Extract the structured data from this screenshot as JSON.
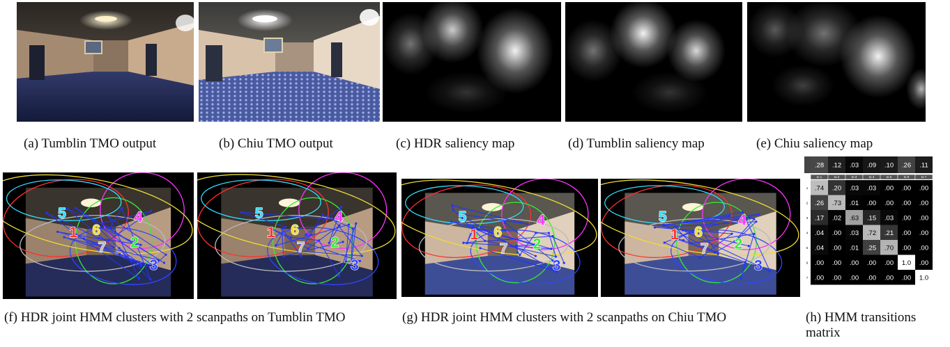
{
  "captions": {
    "a": "(a) Tumblin TMO output",
    "b": "(b) Chiu TMO output",
    "c": "(c) HDR saliency map",
    "d": "(d) Tumblin saliency map",
    "e": "(e) Chiu saliency map",
    "f": "(f) HDR joint HMM clusters with 2 scanpaths on Tumblin TMO",
    "g": "(g) HDR joint HMM clusters with 2 scanpaths on Chiu TMO",
    "h": "(h) HMM transitions matrix"
  },
  "cluster_labels": [
    "1",
    "2",
    "3",
    "4",
    "5",
    "6",
    "7"
  ],
  "cluster_colors": [
    "#ff3030",
    "#33ee33",
    "#3344ff",
    "#ff33ff",
    "#33ddff",
    "#eedd33",
    "#bbbbbb"
  ],
  "matrix": {
    "priors": [
      ".28",
      ".12",
      ".03",
      ".09",
      ".10",
      ".26",
      ".11"
    ],
    "col_headers": [
      "to 1",
      "to 2",
      "to 3",
      "to 4",
      "to 5",
      "to 6",
      "to 7"
    ],
    "row_headers": [
      "1",
      "2",
      "3",
      "4",
      "5",
      "6",
      "7"
    ],
    "values": [
      [
        ".74",
        ".20",
        ".03",
        ".03",
        ".00",
        ".00",
        ".00"
      ],
      [
        ".26",
        ".73",
        ".01",
        ".00",
        ".00",
        ".00",
        ".00"
      ],
      [
        ".17",
        ".02",
        ".63",
        ".15",
        ".03",
        ".00",
        ".00"
      ],
      [
        ".04",
        ".00",
        ".03",
        ".72",
        ".21",
        ".00",
        ".00"
      ],
      [
        ".04",
        ".00",
        ".01",
        ".25",
        ".70",
        ".00",
        ".00"
      ],
      [
        ".00",
        ".00",
        ".00",
        ".00",
        ".00",
        "1.0",
        ".00"
      ],
      [
        ".00",
        ".00",
        ".00",
        ".00",
        ".00",
        ".00",
        "1.0"
      ]
    ]
  }
}
